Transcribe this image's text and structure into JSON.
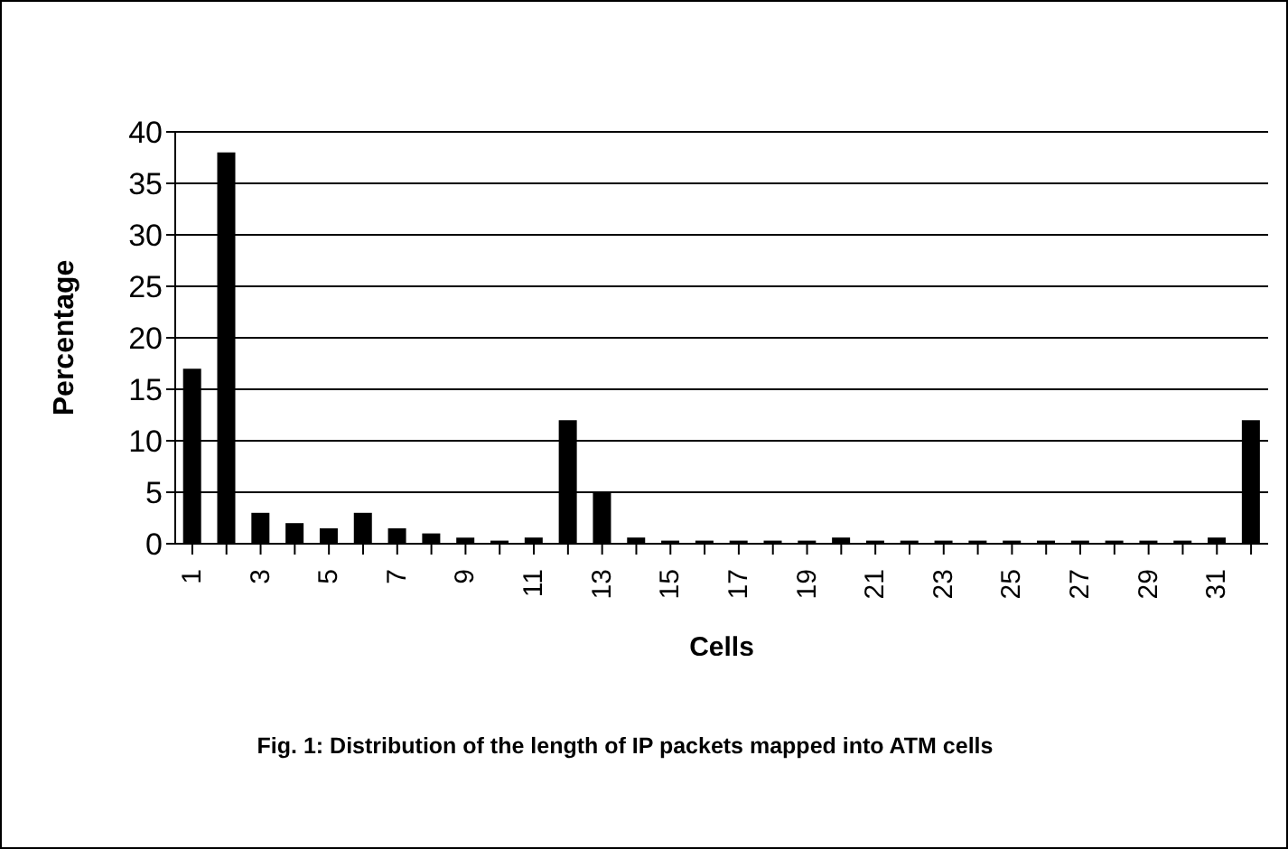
{
  "chart_data": {
    "type": "bar",
    "xlabel": "Cells",
    "ylabel": "Percentage",
    "annotations": [
      "Fig. 1: Distribution of the length of IP packets mapped into ATM cells"
    ],
    "categories": [
      "1",
      null,
      "3",
      null,
      "5",
      null,
      "7",
      null,
      "9",
      null,
      "11",
      null,
      "13",
      null,
      "15",
      null,
      "17",
      null,
      "19",
      null,
      "21",
      null,
      "23",
      null,
      "25",
      null,
      "27",
      null,
      "29",
      null,
      "31",
      null
    ],
    "values": [
      17,
      38,
      3,
      2,
      1.5,
      3,
      1.5,
      1,
      0.6,
      0.3,
      0.6,
      12,
      5,
      0.6,
      0.3,
      0.3,
      0.3,
      0.3,
      0.3,
      0.6,
      0.3,
      0.3,
      0.3,
      0.3,
      0.3,
      0.3,
      0.3,
      0.3,
      0.3,
      0.3,
      0.6,
      12
    ],
    "color": "#000000",
    "ylim": [
      0,
      40
    ],
    "yticks": [
      0,
      5,
      10,
      15,
      20,
      25,
      30,
      35,
      40
    ],
    "grid": "y"
  }
}
